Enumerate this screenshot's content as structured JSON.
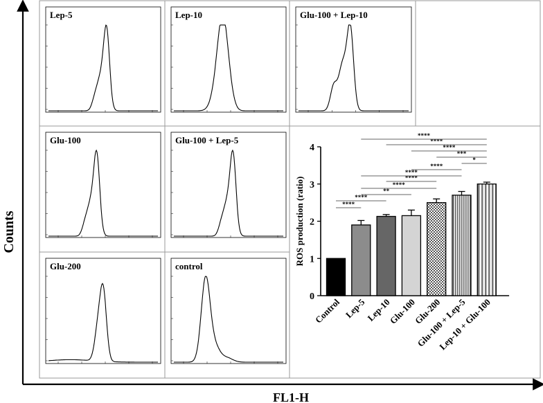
{
  "figure": {
    "y_axis_label": "Counts",
    "x_axis_label": "FL1-H"
  },
  "histograms": [
    {
      "label": "Lep-5",
      "shape": "shoulder-left",
      "peak_x": 0.53
    },
    {
      "label": "Lep-10",
      "shape": "broad",
      "peak_x": 0.45
    },
    {
      "label": "Glu-100 + Lep-10",
      "shape": "multi-shoulder",
      "peak_x": 0.47
    },
    {
      "label": "Glu-100",
      "shape": "shoulder-left",
      "peak_x": 0.44
    },
    {
      "label": "Glu-100 + Lep-5",
      "shape": "shoulder-left",
      "peak_x": 0.54
    },
    {
      "label": "Glu-200",
      "shape": "shoulder-right-tail",
      "peak_x": 0.5
    },
    {
      "label": "control",
      "shape": "broad-right-tail",
      "peak_x": 0.29
    }
  ],
  "chart_data": {
    "type": "bar",
    "ylabel": "ROS production (ratio)",
    "ylim": [
      0,
      4
    ],
    "yticks": [
      "0",
      "1",
      "2",
      "3",
      "4"
    ],
    "categories": [
      "Control",
      "Lep-5",
      "Lep-10",
      "Glu-100",
      "Glu-200",
      "Glu-100 + Lep-5",
      "Lep-10 + Glu-100"
    ],
    "values": [
      1.0,
      1.9,
      2.13,
      2.15,
      2.5,
      2.7,
      3.0
    ],
    "errors": [
      0.0,
      0.12,
      0.05,
      0.15,
      0.1,
      0.1,
      0.05
    ],
    "colors": [
      "#000000",
      "#8c8c8c",
      "#666666",
      "#d4d4d4",
      "pattern-checker",
      "pattern-vstripe-dense",
      "pattern-vstripe-wide"
    ],
    "significance": [
      {
        "from": 0,
        "to": 1,
        "label": "****"
      },
      {
        "from": 0,
        "to": 2,
        "label": "****"
      },
      {
        "from": 1,
        "to": 3,
        "label": "**"
      },
      {
        "from": 1,
        "to": 4,
        "label": "****"
      },
      {
        "from": 2,
        "to": 4,
        "label": "****"
      },
      {
        "from": 1,
        "to": 5,
        "label": "****"
      },
      {
        "from": 3,
        "to": 5,
        "label": "****"
      },
      {
        "from": 5,
        "to": 6,
        "label": "*"
      },
      {
        "from": 4,
        "to": 6,
        "label": "***"
      },
      {
        "from": 3,
        "to": 6,
        "label": "****"
      },
      {
        "from": 2,
        "to": 6,
        "label": "****"
      },
      {
        "from": 1,
        "to": 6,
        "label": "****"
      }
    ]
  }
}
